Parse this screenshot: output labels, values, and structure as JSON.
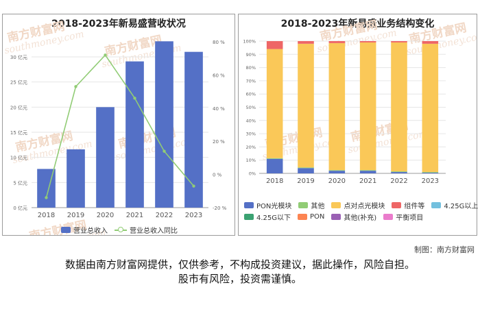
{
  "watermark": {
    "brand": "南方财富网",
    "site": "southmoney.com"
  },
  "credit": "制图：南方财富网",
  "disclaimer": {
    "line1": "数据由南方财富网提供，仅供参考，不构成投资建议，据此操作，风险自担。",
    "line2": "股市有风险，投资需谨慎。"
  },
  "legend_left": [
    {
      "label": "营业总收入",
      "color": "#5470c6",
      "kind": "bar"
    },
    {
      "label": "营业总收入同比",
      "color": "#91cc75",
      "kind": "line"
    }
  ],
  "legend_right_row1": [
    {
      "label": "PON光模块",
      "color": "#5470c6"
    },
    {
      "label": "其他",
      "color": "#91cc75"
    },
    {
      "label": "点对点光模块",
      "color": "#fac858"
    },
    {
      "label": "组件等",
      "color": "#ee6666"
    },
    {
      "label": "4.25G以上",
      "color": "#73c0de"
    }
  ],
  "legend_right_row2": [
    {
      "label": "4.25G以下",
      "color": "#3ba272"
    },
    {
      "label": "PON",
      "color": "#fc8452"
    },
    {
      "label": "其他(补充)",
      "color": "#9a60b4"
    },
    {
      "label": "平衡项目",
      "color": "#ea7ccc"
    }
  ],
  "chart_data": [
    {
      "type": "bar",
      "title": "2018-2023年新易盛营收状况",
      "categories": [
        "2018",
        "2019",
        "2020",
        "2021",
        "2022",
        "2023"
      ],
      "y_left": {
        "ticks": [
          "0 亿元",
          "5 亿元",
          "10 亿元",
          "15 亿元",
          "20 亿元",
          "25 亿元",
          "30 亿元"
        ],
        "ylim": [
          0,
          33
        ]
      },
      "y_right": {
        "ticks": [
          "-20 %",
          "0 %",
          "20 %",
          "40 %",
          "60 %",
          "80 %"
        ],
        "ylim": [
          -20,
          80
        ]
      },
      "series": [
        {
          "name": "营业总收入",
          "type": "bar",
          "axis": "left",
          "color": "#5470c6",
          "values": [
            7.7,
            11.6,
            20.0,
            29.1,
            33.1,
            31.0
          ]
        },
        {
          "name": "营业总收入同比",
          "type": "line",
          "axis": "right",
          "color": "#91cc75",
          "values": [
            -14,
            53,
            72,
            46,
            14,
            -7
          ]
        }
      ],
      "grid": true
    },
    {
      "type": "bar",
      "stacked": true,
      "title": "2018-2023年新易盛业务结构变化",
      "categories": [
        "2018",
        "2019",
        "2020",
        "2021",
        "2022",
        "2023"
      ],
      "y_ticks": [
        "0%",
        "10%",
        "20%",
        "30%",
        "40%",
        "50%",
        "60%",
        "70%",
        "80%",
        "90%",
        "100%"
      ],
      "ylim": [
        0,
        100
      ],
      "series": [
        {
          "name": "PON光模块",
          "color": "#5470c6",
          "values": [
            11,
            4,
            2,
            2,
            1,
            0.5
          ]
        },
        {
          "name": "其他",
          "color": "#91cc75",
          "values": [
            0.5,
            0.5,
            0.5,
            0.5,
            0.5,
            0.5
          ]
        },
        {
          "name": "点对点光模块",
          "color": "#fac858",
          "values": [
            82.5,
            93.5,
            96,
            96.5,
            97.5,
            97
          ]
        },
        {
          "name": "组件等",
          "color": "#ee6666",
          "values": [
            6,
            2,
            1.5,
            1,
            1,
            2
          ]
        },
        {
          "name": "4.25G以上",
          "color": "#73c0de",
          "values": [
            0,
            0,
            0,
            0,
            0,
            0
          ]
        },
        {
          "name": "4.25G以下",
          "color": "#3ba272",
          "values": [
            0,
            0,
            0,
            0,
            0,
            0
          ]
        },
        {
          "name": "PON",
          "color": "#fc8452",
          "values": [
            0,
            0,
            0,
            0,
            0,
            0
          ]
        },
        {
          "name": "其他(补充)",
          "color": "#9a60b4",
          "values": [
            0,
            0,
            0,
            0,
            0,
            0
          ]
        },
        {
          "name": "平衡项目",
          "color": "#ea7ccc",
          "values": [
            0,
            0,
            0,
            0,
            0,
            0
          ]
        }
      ],
      "grid": true
    }
  ]
}
